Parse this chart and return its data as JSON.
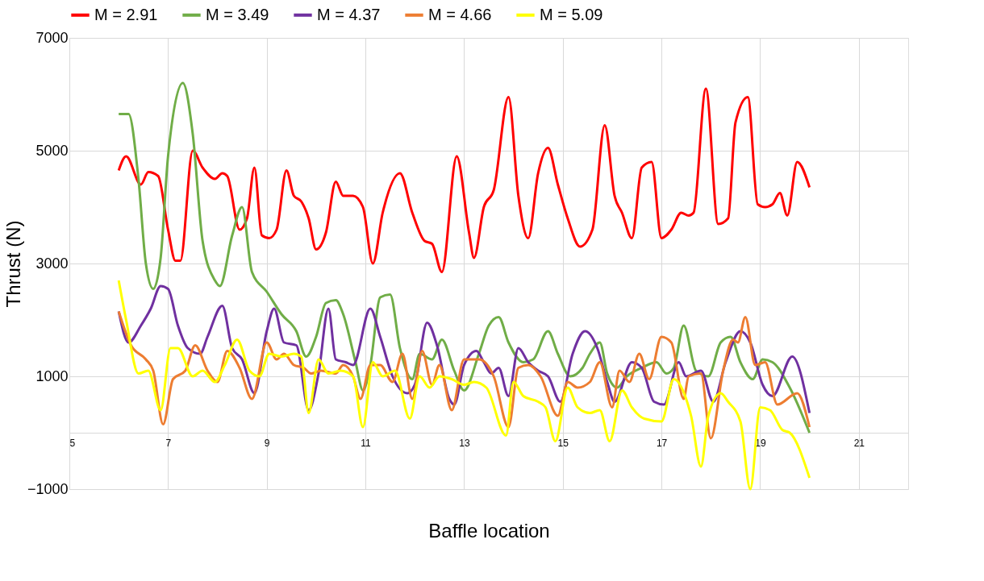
{
  "chart_data": {
    "type": "line",
    "xlabel": "Baffle location",
    "ylabel": "Thrust (N)",
    "xlim": [
      5,
      22
    ],
    "xticks": [
      5,
      7,
      9,
      11,
      13,
      15,
      17,
      19,
      21
    ],
    "ylim": [
      -1000,
      7000
    ],
    "yticks": [
      -1000,
      1000,
      3000,
      5000,
      7000
    ],
    "grid": true,
    "legend": "top",
    "line_style": "solid",
    "series": [
      {
        "name": "M = 2.91",
        "color": "#ff0000",
        "x": [
          6.0,
          6.15,
          6.45,
          6.6,
          6.8,
          7.0,
          7.15,
          7.25,
          7.5,
          7.7,
          7.95,
          8.1,
          8.2,
          8.45,
          8.6,
          8.75,
          8.9,
          9.05,
          9.2,
          9.4,
          9.55,
          9.7,
          9.85,
          10.0,
          10.2,
          10.4,
          10.55,
          10.75,
          10.95,
          11.15,
          11.35,
          11.7,
          11.95,
          12.2,
          12.35,
          12.55,
          12.85,
          13.1,
          13.2,
          13.4,
          13.6,
          13.9,
          14.1,
          14.3,
          14.5,
          14.7,
          14.9,
          15.1,
          15.35,
          15.6,
          15.85,
          16.05,
          16.2,
          16.4,
          16.6,
          16.8,
          17.0,
          17.2,
          17.4,
          17.55,
          17.65,
          17.9,
          18.15,
          18.35,
          18.5,
          18.75,
          18.95,
          19.1,
          19.25,
          19.4,
          19.55,
          19.75,
          20.0
        ],
        "values": [
          4650,
          4900,
          4400,
          4620,
          4550,
          3600,
          3050,
          3050,
          5000,
          4700,
          4500,
          4600,
          4550,
          3600,
          3800,
          4700,
          3500,
          3450,
          3600,
          4650,
          4200,
          4100,
          3800,
          3250,
          3550,
          4450,
          4200,
          4200,
          4000,
          3000,
          3900,
          4600,
          3900,
          3400,
          3350,
          2850,
          4900,
          3550,
          3100,
          4000,
          4300,
          5950,
          4200,
          3450,
          4600,
          5050,
          4400,
          3800,
          3300,
          3600,
          5450,
          4200,
          3900,
          3450,
          4700,
          4800,
          3450,
          3600,
          3900,
          3850,
          3900,
          6100,
          3700,
          3800,
          5500,
          5950,
          4050,
          4000,
          4050,
          4250,
          3850,
          4800,
          4350
        ]
      },
      {
        "name": "M = 3.49",
        "color": "#70ad47",
        "x": [
          6.0,
          6.2,
          6.4,
          6.55,
          6.7,
          6.85,
          7.0,
          7.3,
          7.5,
          7.7,
          7.95,
          8.05,
          8.3,
          8.5,
          8.7,
          9.0,
          9.3,
          9.6,
          9.8,
          10.0,
          10.2,
          10.4,
          10.55,
          10.8,
          10.95,
          11.1,
          11.3,
          11.5,
          11.7,
          11.95,
          12.1,
          12.35,
          12.55,
          12.8,
          13.0,
          13.3,
          13.5,
          13.7,
          13.9,
          14.2,
          14.4,
          14.7,
          14.9,
          15.15,
          15.4,
          15.55,
          15.75,
          15.9,
          16.1,
          16.3,
          16.6,
          16.9,
          17.1,
          17.25,
          17.45,
          17.7,
          17.95,
          18.2,
          18.4,
          18.6,
          18.85,
          19.05,
          19.25,
          19.6,
          20.0
        ],
        "values": [
          5650,
          5650,
          4500,
          3000,
          2550,
          3100,
          4900,
          6200,
          5300,
          3400,
          2700,
          2600,
          3500,
          4000,
          2850,
          2500,
          2100,
          1800,
          1350,
          1700,
          2300,
          2350,
          2100,
          1250,
          750,
          1200,
          2400,
          2450,
          1500,
          950,
          1400,
          1300,
          1650,
          1100,
          750,
          1400,
          1900,
          2050,
          1600,
          1250,
          1300,
          1800,
          1400,
          1000,
          1150,
          1400,
          1600,
          1050,
          800,
          1000,
          1150,
          1250,
          1050,
          1150,
          1900,
          1100,
          1000,
          1600,
          1700,
          1250,
          950,
          1300,
          1250,
          800,
          0
        ]
      },
      {
        "name": "M = 4.37",
        "color": "#7030a0",
        "x": [
          6.0,
          6.2,
          6.45,
          6.65,
          6.85,
          7.0,
          7.2,
          7.4,
          7.65,
          7.8,
          8.1,
          8.3,
          8.5,
          8.75,
          9.0,
          9.15,
          9.35,
          9.6,
          9.85,
          10.05,
          10.25,
          10.4,
          10.6,
          10.75,
          11.1,
          11.3,
          11.55,
          11.85,
          12.0,
          12.25,
          12.45,
          12.7,
          12.8,
          13.0,
          13.25,
          13.4,
          13.55,
          13.7,
          13.9,
          14.1,
          14.3,
          14.5,
          14.7,
          14.95,
          15.2,
          15.45,
          15.7,
          15.9,
          16.05,
          16.4,
          16.6,
          16.85,
          17.05,
          17.35,
          17.5,
          17.8,
          18.05,
          18.3,
          18.6,
          18.8,
          19.05,
          19.25,
          19.65,
          20.0
        ],
        "values": [
          2150,
          1600,
          1900,
          2200,
          2600,
          2550,
          1900,
          1500,
          1400,
          1700,
          2250,
          1500,
          1300,
          700,
          1800,
          2200,
          1600,
          1550,
          400,
          1050,
          2200,
          1300,
          1250,
          1200,
          2200,
          1700,
          1000,
          700,
          850,
          1950,
          1550,
          600,
          500,
          1200,
          1450,
          1250,
          1050,
          1150,
          650,
          1500,
          1250,
          1100,
          1000,
          550,
          1400,
          1800,
          1500,
          900,
          550,
          1250,
          1150,
          550,
          500,
          1250,
          1000,
          1100,
          550,
          1250,
          1800,
          1600,
          850,
          650,
          1350,
          350
        ]
      },
      {
        "name": "M = 4.66",
        "color": "#ed7d31",
        "x": [
          6.0,
          6.25,
          6.55,
          6.7,
          6.9,
          7.1,
          7.35,
          7.55,
          7.8,
          8.0,
          8.2,
          8.45,
          8.7,
          9.0,
          9.2,
          9.35,
          9.55,
          9.75,
          9.9,
          10.1,
          10.4,
          10.55,
          10.75,
          10.9,
          11.1,
          11.3,
          11.55,
          11.75,
          11.95,
          12.15,
          12.35,
          12.5,
          12.75,
          13.0,
          13.3,
          13.6,
          13.9,
          14.1,
          14.3,
          14.55,
          14.9,
          15.1,
          15.3,
          15.55,
          15.75,
          16.0,
          16.15,
          16.35,
          16.55,
          16.75,
          17.0,
          17.2,
          17.45,
          17.55,
          17.8,
          18.0,
          18.25,
          18.45,
          18.55,
          18.7,
          18.9,
          19.1,
          19.35,
          19.75,
          20.0
        ],
        "values": [
          2150,
          1550,
          1300,
          1100,
          150,
          950,
          1100,
          1550,
          1100,
          900,
          1450,
          1150,
          600,
          1600,
          1300,
          1400,
          1200,
          1150,
          1050,
          1100,
          1050,
          1200,
          1000,
          600,
          1200,
          1200,
          900,
          1400,
          600,
          1450,
          850,
          1200,
          400,
          1300,
          1300,
          1000,
          100,
          1150,
          1200,
          1000,
          300,
          900,
          800,
          900,
          1250,
          450,
          1100,
          900,
          1400,
          950,
          1700,
          1600,
          600,
          1000,
          1050,
          -100,
          1100,
          1650,
          1600,
          2050,
          1200,
          1250,
          500,
          700,
          100
        ]
      },
      {
        "name": "M = 5.09",
        "color": "#ffff00",
        "x": [
          6.0,
          6.15,
          6.4,
          6.6,
          6.85,
          7.05,
          7.2,
          7.5,
          7.7,
          7.95,
          8.15,
          8.4,
          8.65,
          8.85,
          9.05,
          9.3,
          9.55,
          9.7,
          9.85,
          10.05,
          10.25,
          10.5,
          10.75,
          10.95,
          11.15,
          11.35,
          11.6,
          11.9,
          12.1,
          12.3,
          12.5,
          12.75,
          13.0,
          13.2,
          13.45,
          13.85,
          14.0,
          14.2,
          14.5,
          14.65,
          14.85,
          15.1,
          15.3,
          15.55,
          15.75,
          15.95,
          16.2,
          16.4,
          16.65,
          17.0,
          17.25,
          17.5,
          17.6,
          17.8,
          17.95,
          18.2,
          18.35,
          18.6,
          18.8,
          19.0,
          19.2,
          19.45,
          19.6,
          20.0
        ],
        "values": [
          2700,
          2000,
          1050,
          1100,
          400,
          1500,
          1500,
          1000,
          1100,
          900,
          1200,
          1650,
          1100,
          1000,
          1400,
          1350,
          1400,
          1350,
          350,
          1300,
          1050,
          1100,
          1000,
          100,
          1250,
          1000,
          1100,
          250,
          1000,
          800,
          1000,
          950,
          850,
          900,
          800,
          -50,
          900,
          650,
          550,
          450,
          -150,
          800,
          450,
          350,
          400,
          -150,
          750,
          450,
          250,
          200,
          950,
          600,
          300,
          -600,
          300,
          700,
          550,
          200,
          -1000,
          450,
          400,
          50,
          0,
          -800
        ]
      }
    ]
  }
}
